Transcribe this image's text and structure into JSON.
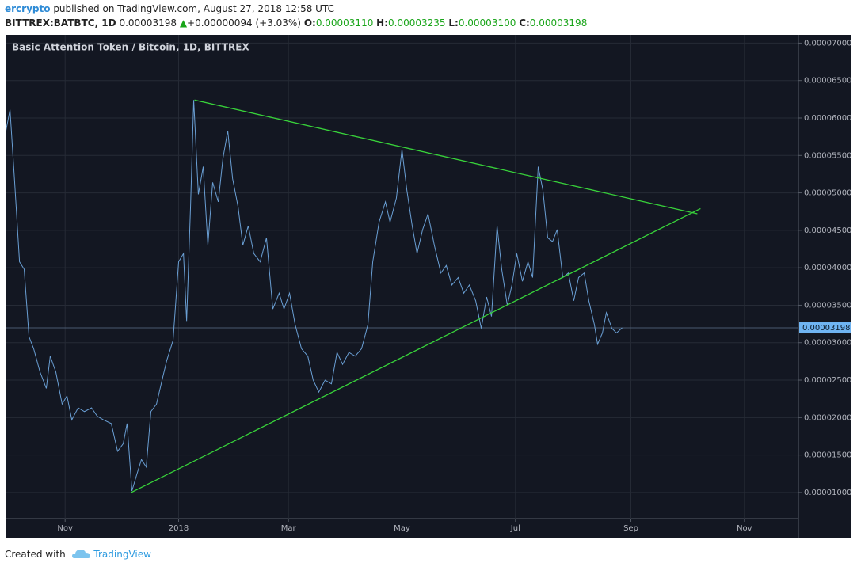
{
  "header": {
    "author": "ercrypto",
    "published": "published on TradingView.com, August 27, 2018 12:58 UTC",
    "symbol": "BITTREX:BATBTC, 1D",
    "last": "0.00003198",
    "arrow": "▲",
    "change": "+0.00000094 (+3.03%)",
    "o_label": "O:",
    "o": "0.00003110",
    "h_label": "H:",
    "h": "0.00003235",
    "l_label": "L:",
    "l": "0.00003100",
    "c_label": "C:",
    "c": "0.00003198"
  },
  "footer": {
    "created": "Created with",
    "brand": "TradingView"
  },
  "chart_data": {
    "type": "line",
    "title": "Basic Attention Token / Bitcoin, 1D, BITTREX",
    "x": [
      -92.8,
      -90.6,
      -88.1,
      -85.5,
      -83,
      -80.4,
      -77.9,
      -74.5,
      -71.1,
      -69,
      -66,
      -62.6,
      -60,
      -57.4,
      -54,
      -50.6,
      -46.8,
      -43.8,
      -40.4,
      -36.2,
      -32.8,
      -29.8,
      -27.7,
      -25.1,
      -22.6,
      -20,
      -17.4,
      -14.9,
      -11.9,
      -8.9,
      -6.4,
      -3,
      0,
      2.6,
      4.3,
      6.4,
      8.1,
      10.6,
      13.2,
      15.7,
      18.3,
      21.3,
      23.8,
      26.4,
      29,
      31.9,
      34.5,
      37.4,
      40.4,
      43.8,
      47.2,
      50.6,
      54,
      56.6,
      59.6,
      62.6,
      66,
      69.4,
      72.3,
      75.3,
      78.7,
      82.1,
      85.1,
      88.1,
      91.5,
      94.9,
      98.3,
      101.7,
      104.3,
      107.7,
      111.1,
      113.6,
      117,
      120,
      122.6,
      125.5,
      128.1,
      131.1,
      134,
      137.4,
      140.9,
      143.8,
      146.8,
      150.2,
      153.2,
      156.2,
      159.6,
      162.6,
      165.5,
      168.1,
      171.1,
      173.6,
      176.6,
      179.1,
      181.7,
      184.7,
      187.7,
      190.2,
      193.2,
      195.7,
      198.3,
      200.9,
      203.4,
      206.4,
      209.4,
      212.3,
      214.9,
      217.9,
      220.4,
      223.4,
      225.1,
      227.7,
      229.8,
      232.8,
      235.3,
      238.3
    ],
    "series": [
      {
        "name": "BATBTC",
        "color": "#6a9fd4",
        "values": [
          5.83e-05,
          6.11e-05,
          5.14e-05,
          4.08e-05,
          3.98e-05,
          3.08e-05,
          2.92e-05,
          2.61e-05,
          2.39e-05,
          2.82e-05,
          2.61e-05,
          2.18e-05,
          2.29e-05,
          1.97e-05,
          2.13e-05,
          2.08e-05,
          2.13e-05,
          2.02e-05,
          1.97e-05,
          1.92e-05,
          1.55e-05,
          1.65e-05,
          1.92e-05,
          1.02e-05,
          1.23e-05,
          1.44e-05,
          1.34e-05,
          2.08e-05,
          2.18e-05,
          2.5e-05,
          2.76e-05,
          3.03e-05,
          4.08e-05,
          4.19e-05,
          3.29e-05,
          4.82e-05,
          6.24e-05,
          4.98e-05,
          5.35e-05,
          4.3e-05,
          5.14e-05,
          4.88e-05,
          5.46e-05,
          5.83e-05,
          5.19e-05,
          4.82e-05,
          4.3e-05,
          4.56e-05,
          4.19e-05,
          4.08e-05,
          4.4e-05,
          3.45e-05,
          3.66e-05,
          3.45e-05,
          3.66e-05,
          3.24e-05,
          2.92e-05,
          2.82e-05,
          2.5e-05,
          2.34e-05,
          2.5e-05,
          2.45e-05,
          2.87e-05,
          2.71e-05,
          2.87e-05,
          2.82e-05,
          2.92e-05,
          3.24e-05,
          4.08e-05,
          4.61e-05,
          4.88e-05,
          4.61e-05,
          4.93e-05,
          5.58e-05,
          5.04e-05,
          4.56e-05,
          4.19e-05,
          4.51e-05,
          4.72e-05,
          4.3e-05,
          3.93e-05,
          4.03e-05,
          3.77e-05,
          3.87e-05,
          3.66e-05,
          3.77e-05,
          3.56e-05,
          3.19e-05,
          3.61e-05,
          3.35e-05,
          4.56e-05,
          3.98e-05,
          3.5e-05,
          3.77e-05,
          4.19e-05,
          3.82e-05,
          4.08e-05,
          3.87e-05,
          5.35e-05,
          5.04e-05,
          4.4e-05,
          4.35e-05,
          4.51e-05,
          3.87e-05,
          3.93e-05,
          3.56e-05,
          3.87e-05,
          3.93e-05,
          3.56e-05,
          3.24e-05,
          2.98e-05,
          3.13e-05,
          3.4e-05,
          3.19e-05,
          3.13e-05,
          3.198e-05
        ]
      }
    ],
    "trendlines": [
      {
        "color": "#38d23a",
        "x": [
          8.5,
          278.7
        ],
        "values": [
          6.24e-05,
          4.72e-05
        ]
      },
      {
        "color": "#38d23a",
        "x": [
          -25.5,
          280.4
        ],
        "values": [
          1e-05,
          4.79e-05
        ]
      }
    ],
    "price_line": {
      "value": 3.198e-05,
      "label": "0.00003198",
      "color": "#6fb4f2"
    },
    "xlim": [
      -93,
      333
    ],
    "xticks": [
      {
        "value": -61,
        "label": "Nov"
      },
      {
        "value": 0,
        "label": "2018"
      },
      {
        "value": 59,
        "label": "Mar"
      },
      {
        "value": 120,
        "label": "May"
      },
      {
        "value": 181,
        "label": "Jul"
      },
      {
        "value": 243,
        "label": "Sep"
      },
      {
        "value": 304,
        "label": "Nov"
      }
    ],
    "ylim": [
      6.5e-06,
      7.11e-05
    ],
    "yticks": [
      {
        "value": 1e-05,
        "label": "0.00001000"
      },
      {
        "value": 1.5e-05,
        "label": "0.00001500"
      },
      {
        "value": 2e-05,
        "label": "0.00002000"
      },
      {
        "value": 2.5e-05,
        "label": "0.00002500"
      },
      {
        "value": 3e-05,
        "label": "0.00003000"
      },
      {
        "value": 3.5e-05,
        "label": "0.00003500"
      },
      {
        "value": 4e-05,
        "label": "0.00004000"
      },
      {
        "value": 4.5e-05,
        "label": "0.00004500"
      },
      {
        "value": 5e-05,
        "label": "0.00005000"
      },
      {
        "value": 5.5e-05,
        "label": "0.00005500"
      },
      {
        "value": 6e-05,
        "label": "0.00006000"
      },
      {
        "value": 6.5e-05,
        "label": "0.00006500"
      },
      {
        "value": 7e-05,
        "label": "0.00007000"
      }
    ],
    "grid": true
  }
}
